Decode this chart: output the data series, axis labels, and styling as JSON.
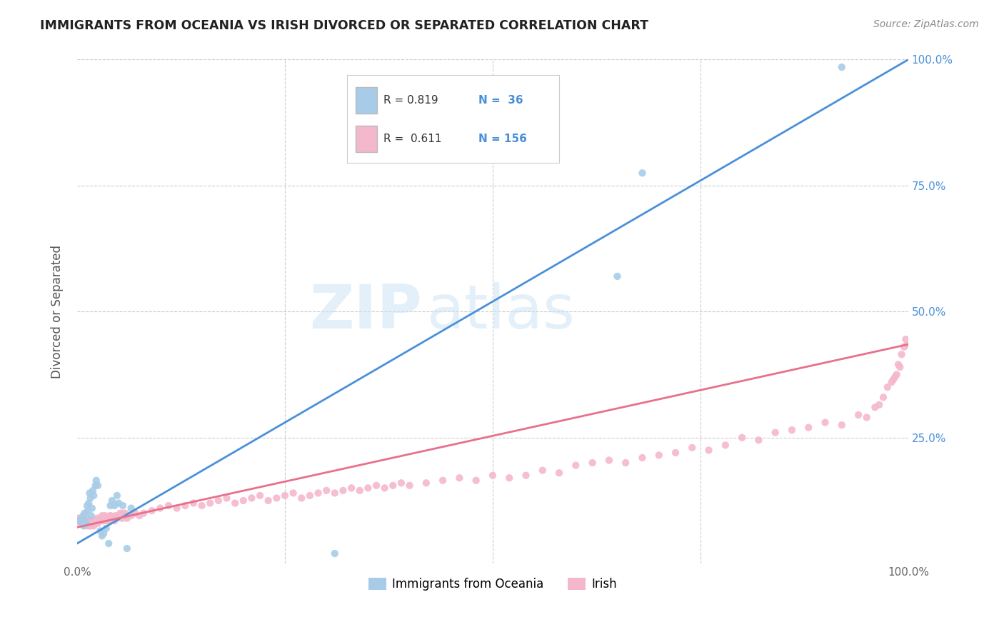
{
  "title": "IMMIGRANTS FROM OCEANIA VS IRISH DIVORCED OR SEPARATED CORRELATION CHART",
  "source": "Source: ZipAtlas.com",
  "ylabel": "Divorced or Separated",
  "legend_label1": "Immigrants from Oceania",
  "legend_label2": "Irish",
  "blue_color": "#a8cce8",
  "pink_color": "#f4b8cc",
  "blue_line_color": "#4a90d9",
  "pink_line_color": "#e8708a",
  "watermark_zip": "ZIP",
  "watermark_atlas": "atlas",
  "background_color": "#ffffff",
  "grid_color": "#cccccc",
  "blue_scatter_x": [
    0.003,
    0.005,
    0.007,
    0.008,
    0.009,
    0.01,
    0.011,
    0.012,
    0.013,
    0.014,
    0.015,
    0.016,
    0.017,
    0.018,
    0.019,
    0.02,
    0.022,
    0.023,
    0.025,
    0.028,
    0.03,
    0.032,
    0.035,
    0.038,
    0.04,
    0.042,
    0.045,
    0.048,
    0.05,
    0.055,
    0.06,
    0.065,
    0.31,
    0.65,
    0.68,
    0.92
  ],
  "blue_scatter_y": [
    0.085,
    0.09,
    0.095,
    0.075,
    0.1,
    0.085,
    0.08,
    0.115,
    0.105,
    0.12,
    0.14,
    0.13,
    0.095,
    0.11,
    0.145,
    0.135,
    0.155,
    0.165,
    0.155,
    0.065,
    0.055,
    0.06,
    0.07,
    0.04,
    0.115,
    0.125,
    0.115,
    0.135,
    0.12,
    0.115,
    0.03,
    0.11,
    0.02,
    0.57,
    0.775,
    0.985
  ],
  "pink_scatter_x": [
    0.001,
    0.002,
    0.003,
    0.004,
    0.005,
    0.006,
    0.007,
    0.008,
    0.009,
    0.01,
    0.011,
    0.012,
    0.013,
    0.014,
    0.015,
    0.016,
    0.017,
    0.018,
    0.019,
    0.02,
    0.022,
    0.023,
    0.025,
    0.028,
    0.03,
    0.032,
    0.035,
    0.038,
    0.04,
    0.042,
    0.045,
    0.048,
    0.05,
    0.055,
    0.06,
    0.065,
    0.07,
    0.075,
    0.08,
    0.09,
    0.1,
    0.11,
    0.12,
    0.13,
    0.14,
    0.15,
    0.16,
    0.17,
    0.18,
    0.19,
    0.2,
    0.21,
    0.22,
    0.23,
    0.24,
    0.25,
    0.26,
    0.27,
    0.28,
    0.29,
    0.3,
    0.31,
    0.32,
    0.33,
    0.34,
    0.35,
    0.36,
    0.37,
    0.38,
    0.39,
    0.4,
    0.42,
    0.44,
    0.46,
    0.48,
    0.5,
    0.52,
    0.54,
    0.56,
    0.58,
    0.6,
    0.62,
    0.64,
    0.66,
    0.68,
    0.7,
    0.72,
    0.74,
    0.76,
    0.78,
    0.8,
    0.82,
    0.84,
    0.86,
    0.88,
    0.9,
    0.92,
    0.94,
    0.95,
    0.96,
    0.965,
    0.97,
    0.975,
    0.98,
    0.982,
    0.984,
    0.986,
    0.988,
    0.99,
    0.992,
    0.995,
    0.997,
    0.999,
    0.001,
    0.003,
    0.004,
    0.006,
    0.007,
    0.008,
    0.009,
    0.01,
    0.011,
    0.012,
    0.013,
    0.014,
    0.015,
    0.016,
    0.017,
    0.018,
    0.019,
    0.02,
    0.022,
    0.024,
    0.026,
    0.028,
    0.03,
    0.032,
    0.034,
    0.036,
    0.038,
    0.04,
    0.042,
    0.044,
    0.046,
    0.048,
    0.05,
    0.052,
    0.054,
    0.056,
    0.058,
    0.06
  ],
  "pink_scatter_y": [
    0.085,
    0.09,
    0.085,
    0.08,
    0.085,
    0.09,
    0.08,
    0.075,
    0.08,
    0.085,
    0.09,
    0.075,
    0.08,
    0.085,
    0.075,
    0.08,
    0.075,
    0.08,
    0.085,
    0.075,
    0.08,
    0.085,
    0.08,
    0.09,
    0.095,
    0.085,
    0.09,
    0.085,
    0.095,
    0.09,
    0.085,
    0.09,
    0.095,
    0.1,
    0.09,
    0.095,
    0.1,
    0.095,
    0.1,
    0.105,
    0.11,
    0.115,
    0.11,
    0.115,
    0.12,
    0.115,
    0.12,
    0.125,
    0.13,
    0.12,
    0.125,
    0.13,
    0.135,
    0.125,
    0.13,
    0.135,
    0.14,
    0.13,
    0.135,
    0.14,
    0.145,
    0.14,
    0.145,
    0.15,
    0.145,
    0.15,
    0.155,
    0.15,
    0.155,
    0.16,
    0.155,
    0.16,
    0.165,
    0.17,
    0.165,
    0.175,
    0.17,
    0.175,
    0.185,
    0.18,
    0.195,
    0.2,
    0.205,
    0.2,
    0.21,
    0.215,
    0.22,
    0.23,
    0.225,
    0.235,
    0.25,
    0.245,
    0.26,
    0.265,
    0.27,
    0.28,
    0.275,
    0.295,
    0.29,
    0.31,
    0.315,
    0.33,
    0.35,
    0.36,
    0.365,
    0.37,
    0.375,
    0.395,
    0.39,
    0.415,
    0.43,
    0.445,
    0.435,
    0.085,
    0.085,
    0.085,
    0.085,
    0.085,
    0.08,
    0.085,
    0.09,
    0.085,
    0.08,
    0.085,
    0.08,
    0.075,
    0.08,
    0.085,
    0.08,
    0.085,
    0.08,
    0.085,
    0.09,
    0.085,
    0.09,
    0.085,
    0.09,
    0.095,
    0.085,
    0.09,
    0.095,
    0.09,
    0.09,
    0.095,
    0.09,
    0.095,
    0.1,
    0.09,
    0.095,
    0.1,
    0.095
  ],
  "blue_line_x": [
    0.0,
    1.0
  ],
  "blue_line_y": [
    0.04,
    1.0
  ],
  "pink_line_x": [
    0.0,
    1.0
  ],
  "pink_line_y": [
    0.072,
    0.435
  ],
  "xlim": [
    0.0,
    1.0
  ],
  "ylim": [
    0.0,
    1.0
  ]
}
